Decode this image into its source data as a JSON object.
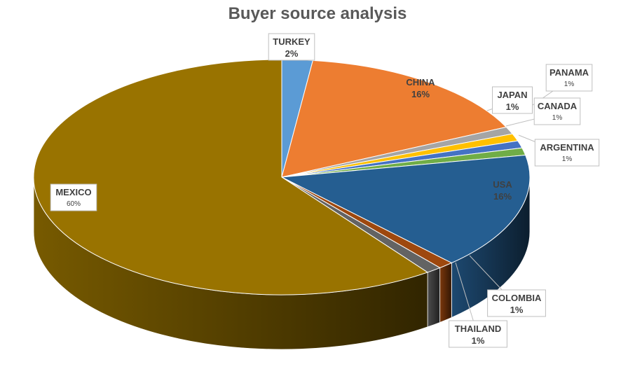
{
  "chart_data": {
    "type": "pie",
    "title": "Buyer source analysis",
    "style": "3d",
    "categories": [
      "TURKEY",
      "CHINA",
      "PANAMA",
      "JAPAN",
      "CANADA",
      "ARGENTINA",
      "USA",
      "COLOMBIA",
      "THAILAND",
      "MEXICO"
    ],
    "values": [
      2,
      16,
      1,
      1,
      1,
      1,
      16,
      1,
      1,
      60
    ],
    "labels": [
      "2%",
      "16%",
      "1%",
      "1%",
      "1%",
      "1%",
      "16%",
      "1%",
      "1%",
      "60%"
    ],
    "colors": [
      "#5b9bd5",
      "#ed7d31",
      "#a5a5a5",
      "#ffc000",
      "#4472c4",
      "#70ad47",
      "#255e91",
      "#9e480e",
      "#636363",
      "#997300"
    ]
  }
}
